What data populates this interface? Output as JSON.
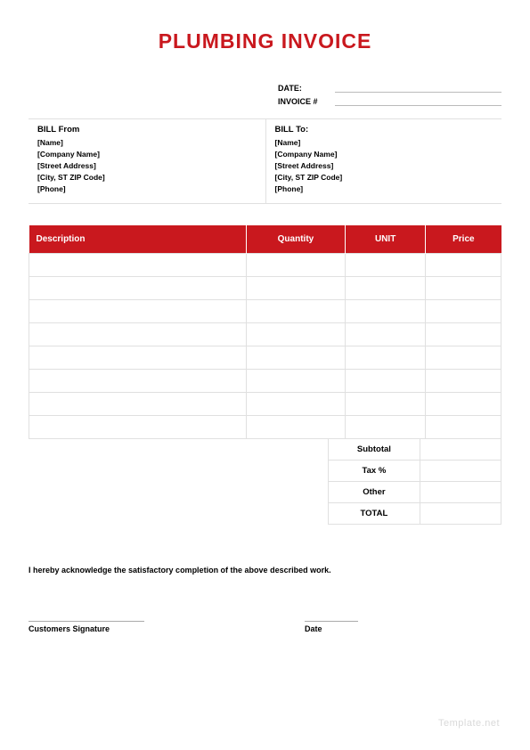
{
  "title": "PLUMBING INVOICE",
  "meta": {
    "date_label": "DATE:",
    "invoice_label": "INVOICE #"
  },
  "bill_from": {
    "heading": "BILL From",
    "lines": [
      "[Name]",
      "[Company Name]",
      "[Street Address]",
      "[City, ST  ZIP Code]",
      "[Phone]"
    ]
  },
  "bill_to": {
    "heading": "BILL To:",
    "lines": [
      "[Name]",
      "[Company Name]",
      "[Street Address]",
      "[City, ST  ZIP Code]",
      "[Phone]"
    ]
  },
  "items_table": {
    "columns": [
      "Description",
      "Quantity",
      "UNIT",
      "Price"
    ],
    "col_widths_pct": [
      46,
      21,
      17,
      16
    ],
    "header_bg": "#c9181e",
    "header_fg": "#ffffff",
    "border_color": "#e0e0e0",
    "row_count": 8
  },
  "totals": {
    "labels": [
      "Subtotal",
      "Tax %",
      "Other",
      "TOTAL"
    ]
  },
  "acknowledgement": "I hereby acknowledge the satisfactory completion of the above described work.",
  "signatures": {
    "customer": "Customers Signature",
    "date": "Date"
  },
  "watermark": "Template.net",
  "colors": {
    "accent": "#c9181e",
    "border": "#e0e0e0",
    "watermark": "#d9d9d9",
    "background": "#ffffff"
  }
}
